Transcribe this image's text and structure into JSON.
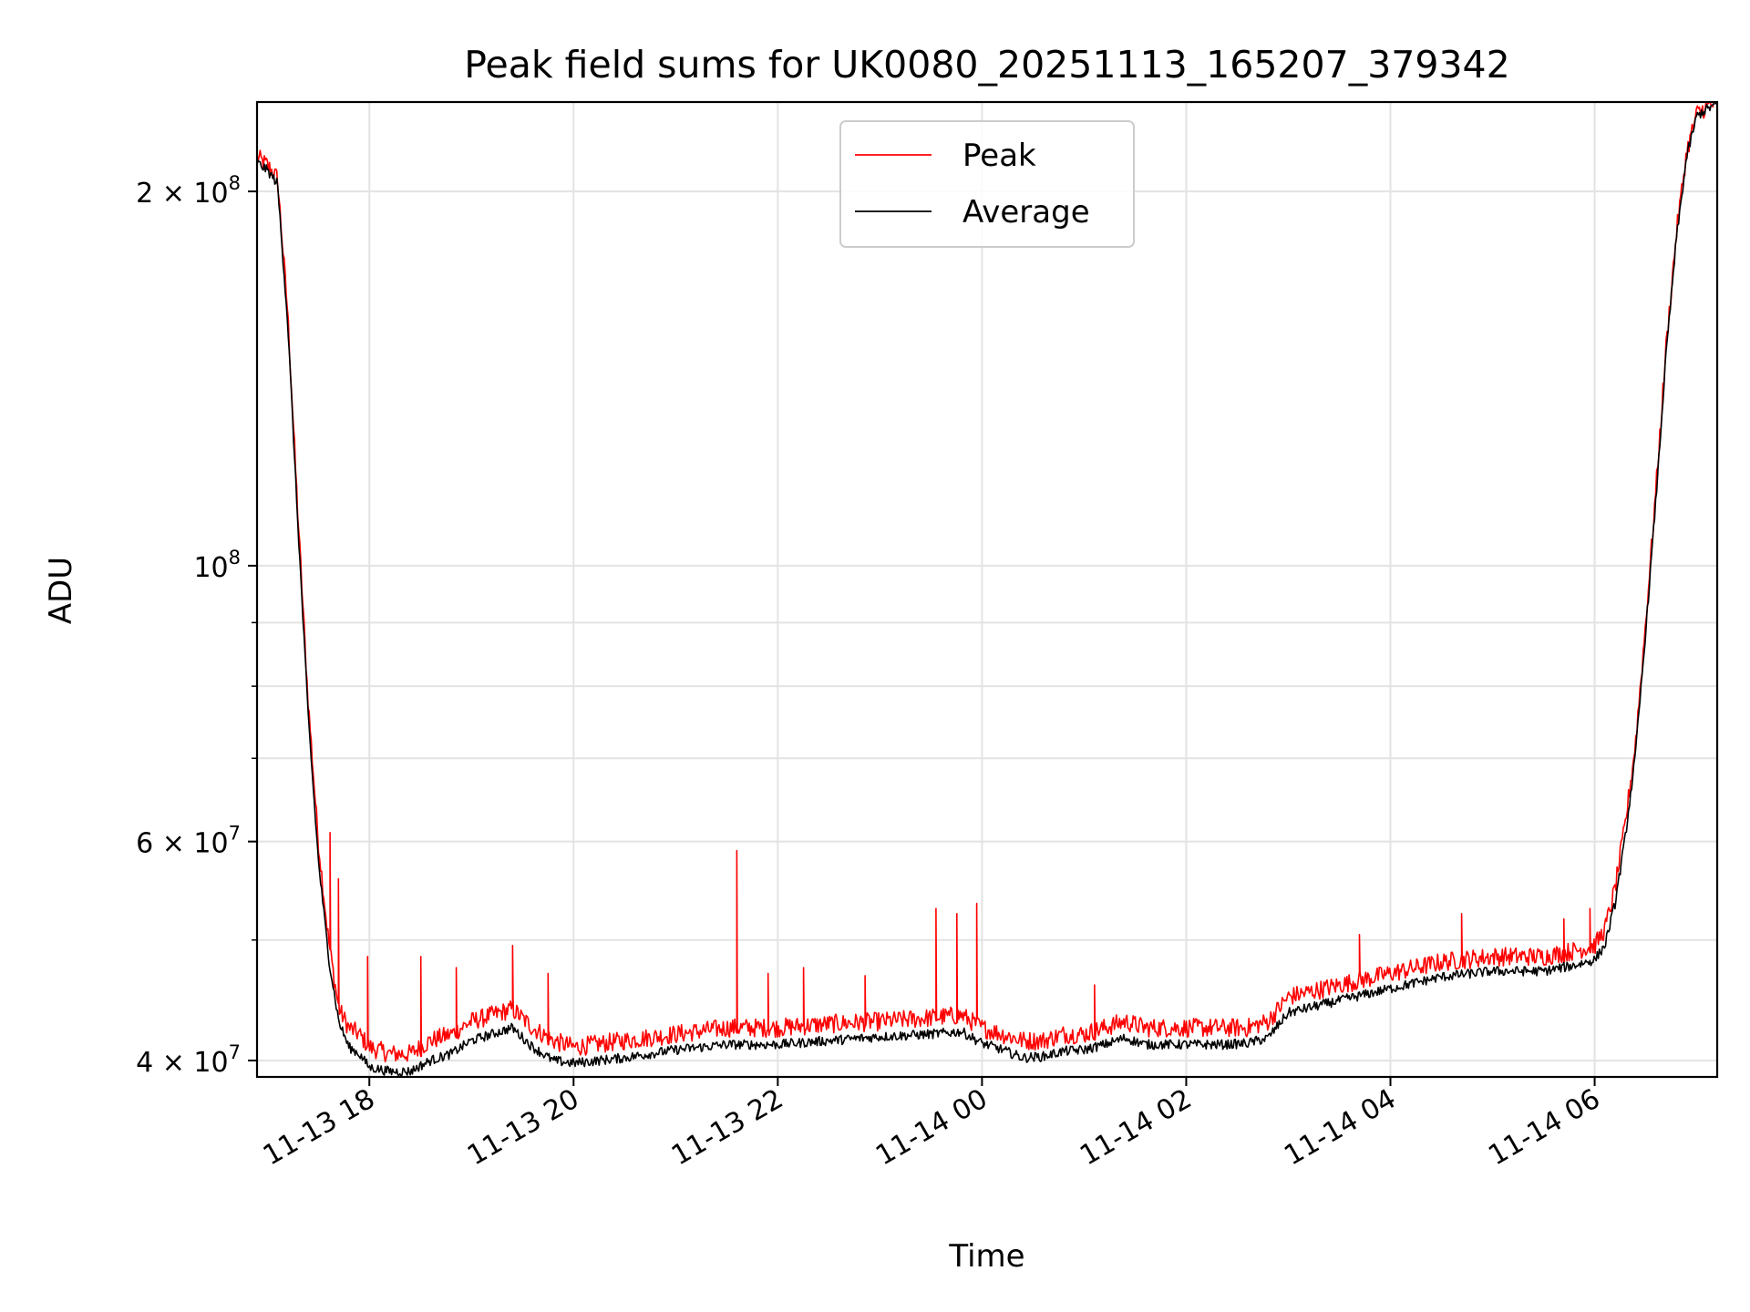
{
  "chart_data": {
    "type": "line",
    "title": "Peak field sums for UK0080_20251113_165207_379342",
    "xlabel": "Time",
    "ylabel": "ADU",
    "yscale": "log",
    "grid": true,
    "legend_position": "upper-center",
    "x_unit": "hours since 11-13 00:00",
    "xlim": [
      16.9,
      31.2
    ],
    "ylim": [
      38800000,
      236000000
    ],
    "x_ticks": [
      {
        "value": 18,
        "label": "11-13 18"
      },
      {
        "value": 20,
        "label": "11-13 20"
      },
      {
        "value": 22,
        "label": "11-13 22"
      },
      {
        "value": 24,
        "label": "11-14 00"
      },
      {
        "value": 26,
        "label": "11-14 02"
      },
      {
        "value": 28,
        "label": "11-14 04"
      },
      {
        "value": 30,
        "label": "11-14 06"
      }
    ],
    "y_major_ticks": [
      {
        "value": 40000000,
        "mantissa": "4",
        "exponent": "7"
      },
      {
        "value": 60000000,
        "mantissa": "6",
        "exponent": "7"
      },
      {
        "value": 100000000,
        "mantissa": "",
        "exponent": "8"
      },
      {
        "value": 200000000,
        "mantissa": "2",
        "exponent": "8"
      }
    ],
    "y_tick_base": "10",
    "y_tick_times": "×",
    "y_minor_ticks": [
      50000000,
      70000000,
      80000000,
      90000000
    ],
    "series": [
      {
        "name": "Peak",
        "color": "#ff0000",
        "x": [
          16.9,
          17.0,
          17.1,
          17.2,
          17.3,
          17.4,
          17.5,
          17.6,
          17.7,
          17.8,
          17.9,
          18.0,
          18.2,
          18.4,
          18.6,
          18.8,
          19.0,
          19.2,
          19.4,
          19.6,
          19.8,
          20.0,
          20.5,
          21.0,
          21.5,
          22.0,
          22.5,
          23.0,
          23.5,
          23.8,
          24.0,
          24.2,
          24.4,
          24.6,
          24.8,
          25.0,
          25.2,
          25.4,
          25.6,
          25.8,
          26.0,
          26.2,
          26.4,
          26.6,
          26.8,
          27.0,
          27.5,
          28.0,
          28.5,
          29.0,
          29.5,
          29.8,
          30.0,
          30.1,
          30.2,
          30.3,
          30.4,
          30.5,
          30.6,
          30.7,
          30.8,
          30.9,
          31.0,
          31.1,
          31.2
        ],
        "y": [
          213000000,
          210000000,
          205000000,
          160000000,
          110000000,
          78000000,
          60000000,
          50000000,
          44000000,
          42500000,
          42000000,
          41000000,
          40500000,
          40500000,
          41500000,
          42000000,
          43000000,
          43500000,
          44000000,
          42500000,
          41500000,
          41000000,
          41500000,
          42000000,
          42500000,
          42500000,
          42800000,
          43000000,
          43300000,
          43500000,
          42500000,
          42000000,
          41500000,
          41500000,
          42000000,
          42000000,
          42500000,
          43000000,
          42500000,
          42500000,
          42500000,
          42500000,
          42500000,
          42500000,
          43000000,
          45000000,
          46000000,
          47000000,
          48000000,
          48500000,
          48500000,
          49000000,
          49500000,
          51000000,
          55000000,
          62000000,
          72000000,
          90000000,
          115000000,
          150000000,
          185000000,
          215000000,
          231000000,
          234000000,
          236000000
        ],
        "spikes": [
          {
            "x": 17.62,
            "y": 61000000
          },
          {
            "x": 17.7,
            "y": 56000000
          },
          {
            "x": 17.98,
            "y": 48500000
          },
          {
            "x": 18.5,
            "y": 48500000
          },
          {
            "x": 18.85,
            "y": 47500000
          },
          {
            "x": 19.4,
            "y": 49500000
          },
          {
            "x": 19.75,
            "y": 47000000
          },
          {
            "x": 21.6,
            "y": 59000000
          },
          {
            "x": 21.9,
            "y": 47000000
          },
          {
            "x": 22.25,
            "y": 47500000
          },
          {
            "x": 22.85,
            "y": 46800000
          },
          {
            "x": 23.55,
            "y": 53000000
          },
          {
            "x": 23.75,
            "y": 52500000
          },
          {
            "x": 23.95,
            "y": 53500000
          },
          {
            "x": 25.1,
            "y": 46000000
          },
          {
            "x": 27.7,
            "y": 50500000
          },
          {
            "x": 28.7,
            "y": 52500000
          },
          {
            "x": 29.7,
            "y": 52000000
          },
          {
            "x": 29.95,
            "y": 53000000
          }
        ]
      },
      {
        "name": "Average",
        "color": "#000000",
        "x": [
          16.9,
          17.0,
          17.1,
          17.2,
          17.3,
          17.4,
          17.5,
          17.6,
          17.7,
          17.8,
          17.9,
          18.0,
          18.2,
          18.4,
          18.6,
          18.8,
          19.0,
          19.2,
          19.4,
          19.6,
          19.8,
          20.0,
          20.5,
          21.0,
          21.5,
          22.0,
          22.5,
          23.0,
          23.5,
          23.8,
          24.0,
          24.2,
          24.4,
          24.6,
          24.8,
          25.0,
          25.2,
          25.4,
          25.6,
          25.8,
          26.0,
          26.2,
          26.4,
          26.6,
          26.8,
          27.0,
          27.5,
          28.0,
          28.5,
          29.0,
          29.5,
          29.8,
          30.0,
          30.1,
          30.2,
          30.3,
          30.4,
          30.5,
          30.6,
          30.7,
          30.8,
          30.9,
          31.0,
          31.1,
          31.2
        ],
        "y": [
          211000000,
          208000000,
          203000000,
          157000000,
          108000000,
          76000000,
          58000000,
          48500000,
          43000000,
          41000000,
          40500000,
          39500000,
          39200000,
          39200000,
          40000000,
          40500000,
          41500000,
          42000000,
          42500000,
          41000000,
          40000000,
          39800000,
          40200000,
          40800000,
          41200000,
          41200000,
          41500000,
          41800000,
          42000000,
          42200000,
          41300000,
          40800000,
          40200000,
          40300000,
          40700000,
          40800000,
          41200000,
          41700000,
          41200000,
          41200000,
          41200000,
          41200000,
          41200000,
          41300000,
          41700000,
          43700000,
          44700000,
          45700000,
          46700000,
          47200000,
          47200000,
          47700000,
          48200000,
          49500000,
          53500000,
          60500000,
          70500000,
          88500000,
          113000000,
          148000000,
          183000000,
          213000000,
          230000000,
          233000000,
          235000000
        ]
      }
    ]
  }
}
